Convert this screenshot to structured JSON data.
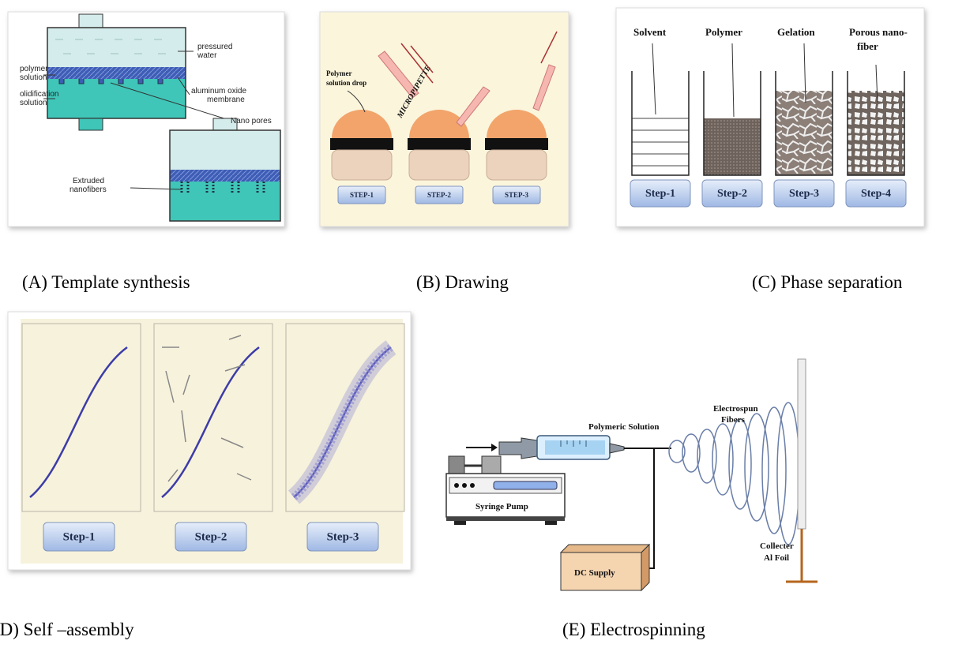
{
  "panel_a": {
    "caption": "(A)  Template synthesis",
    "labels": [
      [
        "pressured",
        "water"
      ],
      [
        "polymer",
        "solution"
      ],
      [
        "aluminum oxide",
        "membrane"
      ],
      [
        "olidification",
        "solution"
      ],
      [
        "Nano pores"
      ],
      [
        "Extruded",
        "nanofibers"
      ]
    ]
  },
  "panel_b": {
    "caption": "(B) Drawing",
    "drop_label": [
      "Polymer",
      "solution drop"
    ],
    "pipette_label": "MICROPIPETTE",
    "steps": [
      "STEP-1",
      "STEP-2",
      "STEP-3"
    ]
  },
  "panel_c": {
    "caption": "(C) Phase separation",
    "stages": [
      [
        "Solvent"
      ],
      [
        "Polymer"
      ],
      [
        "Gelation"
      ],
      [
        "Porous nano-",
        "fiber"
      ]
    ],
    "steps": [
      "Step-1",
      "Step-2",
      "Step-3",
      "Step-4"
    ]
  },
  "panel_d": {
    "caption": "(D) Self –assembly",
    "steps": [
      "Step-1",
      "Step-2",
      "Step-3"
    ]
  },
  "panel_e": {
    "caption": "(E) Electrospinning",
    "solution": "Polymeric Solution",
    "fibers": [
      "Electrospun",
      "Fibers"
    ],
    "pump": "Syringe Pump",
    "supply": "DC Supply",
    "collector": [
      "Collecter",
      "Al Foil"
    ]
  }
}
